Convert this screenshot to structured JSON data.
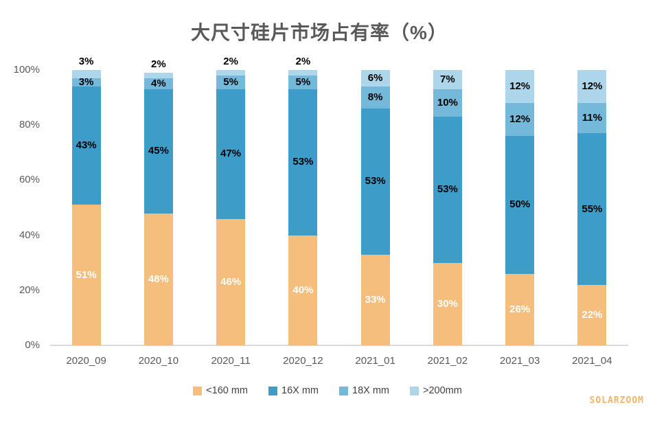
{
  "title": "大尺寸硅片市场占有率（%）",
  "watermark": "SOLARZOOM",
  "chart_data": {
    "type": "bar",
    "stacked": true,
    "percent_stacked": true,
    "title": "大尺寸硅片市场占有率（%）",
    "categories": [
      "2020_09",
      "2020_10",
      "2020_11",
      "2020_12",
      "2021_01",
      "2021_02",
      "2021_03",
      "2021_04"
    ],
    "series": [
      {
        "name": "<160 mm",
        "color": "#F6BE7D",
        "label_color": "#FFFFFF",
        "values": [
          51,
          48,
          46,
          40,
          33,
          30,
          26,
          22
        ]
      },
      {
        "name": "16X mm",
        "color": "#3E9CC9",
        "label_color": "#000000",
        "values": [
          43,
          45,
          47,
          53,
          53,
          53,
          50,
          55
        ]
      },
      {
        "name": "18X mm",
        "color": "#74B8DA",
        "label_color": "#000000",
        "values": [
          3,
          4,
          5,
          5,
          8,
          10,
          12,
          11
        ]
      },
      {
        "name": ">200mm",
        "color": "#AED6EA",
        "label_color": "#000000",
        "values": [
          3,
          2,
          2,
          2,
          6,
          7,
          12,
          12
        ]
      }
    ],
    "data_label_suffix": "%",
    "outside_label_threshold": 4,
    "yticks": [
      "0%",
      "20%",
      "40%",
      "60%",
      "80%",
      "100%"
    ],
    "ylim": [
      0,
      100
    ],
    "xlabel": "",
    "ylabel": "",
    "grid": false,
    "legend_position": "bottom",
    "axis_color": "#D9D9D9",
    "text_color": "#595959"
  }
}
